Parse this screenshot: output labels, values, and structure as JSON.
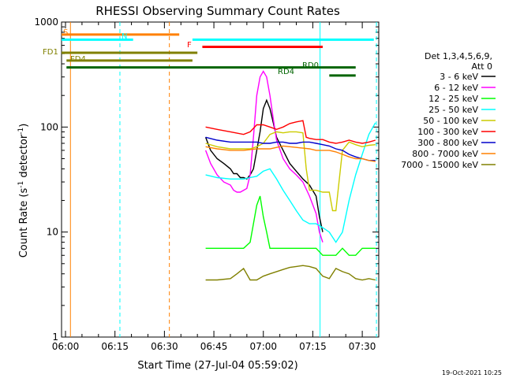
{
  "chart_data": {
    "type": "line",
    "title": "RHESSI Observing Summary Count Rates",
    "xlabel": "Start Time (27-Jul-04 05:59:02)",
    "ylabel_main": "Count Rate (s",
    "ylabel_sup": "-1",
    "ylabel_mid": " detector",
    "ylabel_sup2": "-1",
    "ylabel_end": ")",
    "footer_date": "19-Oct-2021 10:25",
    "yscale": "log",
    "ylim": [
      1,
      1000
    ],
    "xlim_minutes": [
      -1.2,
      38.5
    ],
    "x_ticks": [
      {
        "t": 0,
        "label": "06:00"
      },
      {
        "t": 15,
        "label": "06:15"
      },
      {
        "t": 30,
        "label": "06:30"
      },
      {
        "t": 45,
        "label": "06:45"
      },
      {
        "t": 60,
        "label": "07:00"
      },
      {
        "t": 75,
        "label": "07:15"
      },
      {
        "t": 90,
        "label": "07:30"
      }
    ],
    "x_minor_step": 5,
    "y_ticks": [
      {
        "v": 1,
        "label": "1"
      },
      {
        "v": 10,
        "label": "10"
      },
      {
        "v": 100,
        "label": "100"
      },
      {
        "v": 1000,
        "label": "1000"
      }
    ],
    "legend": {
      "header1": "Det 1,3,4,5,6,9,",
      "header2": "Att 0",
      "entries": [
        {
          "label": "3 - 6 keV",
          "color": "#000000"
        },
        {
          "label": "6 - 12 keV",
          "color": "#ff00ff"
        },
        {
          "label": "12 - 25 keV",
          "color": "#00ff00"
        },
        {
          "label": "25 - 50 keV",
          "color": "#00ffff"
        },
        {
          "label": "50 - 100 keV",
          "color": "#cccc00"
        },
        {
          "label": "100 - 300 keV",
          "color": "#ff0000"
        },
        {
          "label": "300 - 800 keV",
          "color": "#0000cc"
        },
        {
          "label": "800 - 7000 keV",
          "color": "#ff8000"
        },
        {
          "label": "7000 - 15000 keV",
          "color": "#808000"
        }
      ]
    },
    "flags": [
      {
        "label": "S",
        "color": "#ff8000",
        "t0": -1.2,
        "t1": 34.5,
        "y": 760
      },
      {
        "label": "N",
        "color": "#00ffff",
        "t0": -1.2,
        "t1": 20.5,
        "y": 680
      },
      {
        "label": "N",
        "color": "#00ffff",
        "t0": 93.5,
        "t1": 38.5,
        "y": 680
      },
      {
        "label": "F",
        "color": "#ff0000",
        "t0": 41.5,
        "t1": 78.0,
        "y": 580
      },
      {
        "label": "FD1",
        "color": "#808000",
        "t0": -1.2,
        "t1": 40.0,
        "y": 510
      },
      {
        "label": "FD4",
        "color": "#808000",
        "t0": 0.3,
        "t1": 38.5,
        "y": 430
      },
      {
        "label": "RD0",
        "color": "#006400",
        "t0": 0.3,
        "t1": 88.0,
        "y": 370
      },
      {
        "label": "RD4",
        "color": "#006400",
        "t0": 80.0,
        "t1": 88.0,
        "y": 310
      }
    ],
    "vlines": [
      {
        "t": 1.5,
        "color": "#ff8000",
        "dashed": false
      },
      {
        "t": 16.5,
        "color": "#00ffff",
        "dashed": true
      },
      {
        "t": 31.5,
        "color": "#ff8000",
        "dashed": true
      },
      {
        "t": 77.2,
        "color": "#00ffff",
        "dashed": false
      },
      {
        "t": 94.3,
        "color": "#00ffff",
        "dashed": true
      }
    ],
    "series": [
      {
        "name": "3 - 6 keV",
        "color": "#000000",
        "t": [
          42.5,
          44,
          46,
          48,
          50,
          51,
          52,
          53,
          54,
          55,
          56,
          57,
          58,
          59,
          60,
          61,
          62,
          63,
          64,
          66,
          68,
          70,
          72,
          74,
          76,
          77,
          78
        ],
        "v": [
          80,
          60,
          50,
          45,
          40,
          36,
          36,
          33,
          33,
          32,
          35,
          40,
          60,
          90,
          150,
          180,
          150,
          110,
          80,
          60,
          45,
          38,
          32,
          28,
          22,
          14,
          10
        ]
      },
      {
        "name": "6 - 12 keV",
        "color": "#ff00ff",
        "t": [
          42.5,
          44,
          46,
          48,
          50,
          51,
          52,
          53,
          54,
          55,
          56,
          57,
          58,
          59,
          60,
          61,
          62,
          63,
          64,
          66,
          68,
          70,
          72,
          74,
          76,
          77,
          78
        ],
        "v": [
          60,
          45,
          35,
          30,
          28,
          25,
          24,
          24,
          25,
          26,
          35,
          80,
          200,
          300,
          340,
          300,
          200,
          120,
          75,
          50,
          40,
          35,
          30,
          22,
          15,
          10,
          8
        ]
      },
      {
        "name": "12 - 25 keV",
        "color": "#00ff00",
        "t": [
          42.5,
          46,
          50,
          52,
          54,
          56,
          57,
          58,
          59,
          60,
          61,
          62,
          64,
          66,
          70,
          74,
          76,
          78,
          80,
          82,
          84,
          86,
          88,
          90,
          92,
          94
        ],
        "v": [
          7,
          7,
          7,
          7,
          7,
          8,
          12,
          18,
          22,
          14,
          10,
          7,
          7,
          7,
          7,
          7,
          7,
          6,
          6,
          6,
          7,
          6,
          6,
          7,
          7,
          7
        ]
      },
      {
        "name": "25 - 50 keV",
        "color": "#00ffff",
        "t": [
          42.5,
          46,
          50,
          54,
          56,
          58,
          60,
          62,
          64,
          66,
          68,
          70,
          72,
          74,
          76,
          78,
          80,
          82,
          84,
          86,
          88,
          90,
          92,
          94
        ],
        "v": [
          35,
          33,
          32,
          32,
          33,
          34,
          38,
          40,
          32,
          25,
          20,
          16,
          13,
          12,
          12,
          11,
          10,
          8,
          10,
          20,
          35,
          55,
          85,
          110
        ]
      },
      {
        "name": "50 - 100 keV",
        "color": "#cccc00",
        "t": [
          42.5,
          46,
          50,
          54,
          56,
          58,
          60,
          62,
          64,
          66,
          68,
          70,
          72,
          73,
          74,
          76,
          78,
          80,
          81,
          82,
          84,
          86,
          88,
          90,
          92,
          94
        ],
        "v": [
          70,
          65,
          62,
          62,
          62,
          65,
          70,
          85,
          90,
          88,
          90,
          90,
          88,
          40,
          25,
          25,
          24,
          24,
          16,
          16,
          60,
          72,
          68,
          65,
          67,
          68
        ]
      },
      {
        "name": "100 - 300 keV",
        "color": "#ff0000",
        "t": [
          42.5,
          46,
          50,
          54,
          56,
          58,
          60,
          62,
          64,
          66,
          68,
          70,
          72,
          73,
          74,
          76,
          78,
          80,
          82,
          84,
          86,
          88,
          90,
          92,
          94
        ],
        "v": [
          100,
          95,
          90,
          85,
          90,
          105,
          105,
          100,
          95,
          100,
          108,
          112,
          115,
          80,
          78,
          76,
          76,
          72,
          70,
          72,
          75,
          72,
          70,
          72,
          75
        ]
      },
      {
        "name": "300 - 800 keV",
        "color": "#0000cc",
        "t": [
          42.5,
          46,
          50,
          54,
          58,
          60,
          62,
          64,
          66,
          68,
          70,
          72,
          74,
          76,
          78,
          80,
          82,
          84,
          86,
          88,
          90,
          92,
          94
        ],
        "v": [
          80,
          75,
          72,
          72,
          72,
          70,
          70,
          72,
          72,
          70,
          70,
          72,
          72,
          70,
          68,
          66,
          62,
          60,
          55,
          52,
          50,
          48,
          48
        ]
      },
      {
        "name": "800 - 7000 keV",
        "color": "#ff8000",
        "t": [
          42.5,
          46,
          50,
          54,
          58,
          60,
          62,
          64,
          66,
          68,
          70,
          72,
          74,
          76,
          78,
          80,
          82,
          84,
          86,
          88,
          90,
          92,
          94
        ],
        "v": [
          65,
          62,
          60,
          60,
          62,
          62,
          62,
          64,
          66,
          65,
          64,
          63,
          62,
          60,
          60,
          60,
          58,
          55,
          52,
          50,
          50,
          48,
          47
        ]
      },
      {
        "name": "7000 - 15000 keV",
        "color": "#808000",
        "t": [
          42.5,
          46,
          50,
          52,
          54,
          56,
          58,
          60,
          62,
          64,
          66,
          68,
          70,
          72,
          74,
          76,
          78,
          80,
          82,
          84,
          86,
          88,
          90,
          92,
          94
        ],
        "v": [
          3.5,
          3.5,
          3.6,
          4,
          4.5,
          3.5,
          3.5,
          3.8,
          4,
          4.2,
          4.4,
          4.6,
          4.7,
          4.8,
          4.7,
          4.5,
          3.8,
          3.6,
          4.5,
          4.2,
          4,
          3.6,
          3.5,
          3.6,
          3.5
        ]
      }
    ]
  }
}
